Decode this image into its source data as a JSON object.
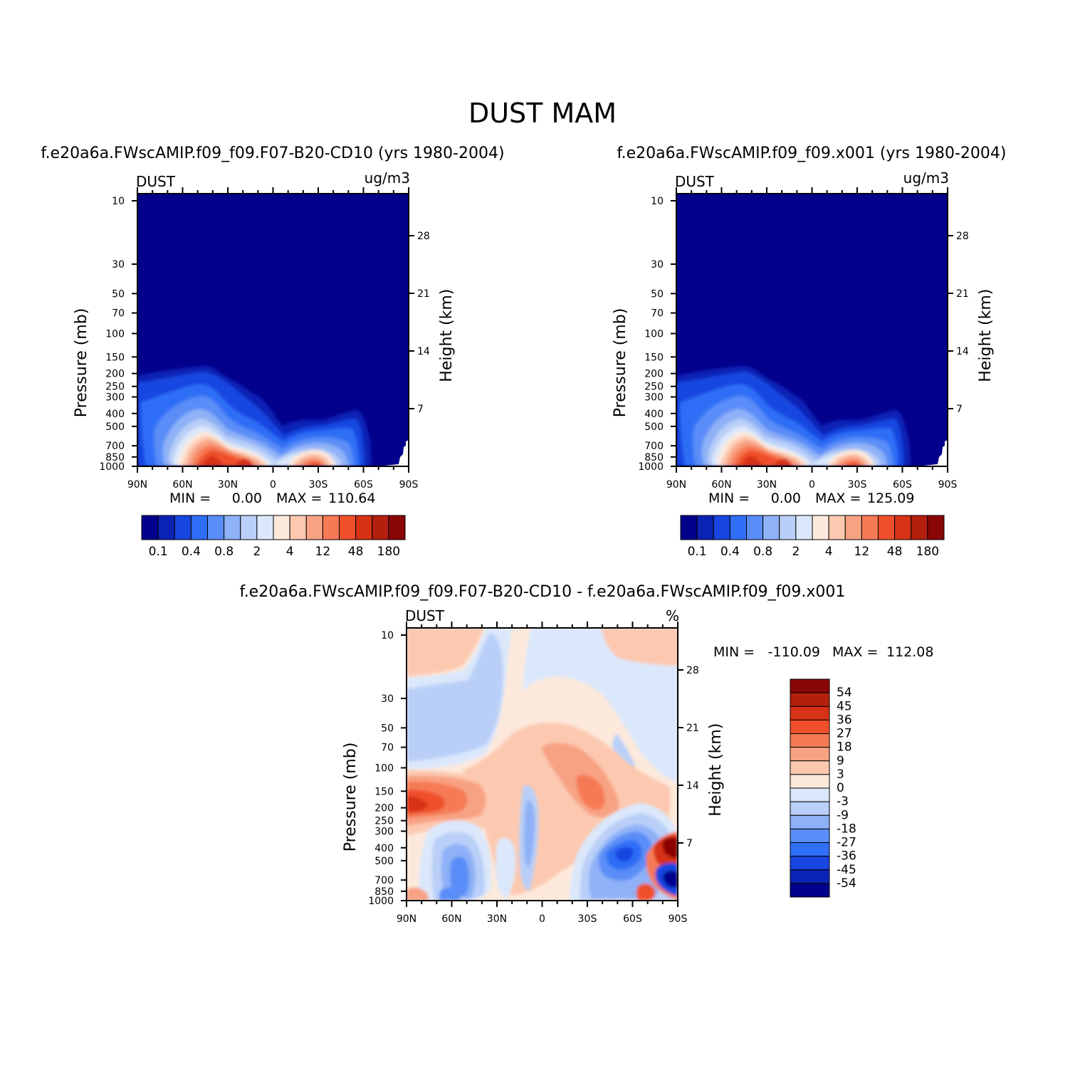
{
  "title": "DUST MAM",
  "chart_data": [
    {
      "type": "heatmap",
      "subtitle": "f.e20a6a.FWscAMIP.f09_f09.F07-B20-CD10 (yrs 1980-2004)",
      "variable": "DUST",
      "units": "ug/m3",
      "ylabel": "Pressure (mb)",
      "ylabel_right": "Height (km)",
      "x_ticks": [
        "90N",
        "60N",
        "30N",
        "0",
        "30S",
        "60S",
        "90S"
      ],
      "x_range": [
        "90N",
        "90S"
      ],
      "y_ticks": [
        10,
        30,
        50,
        70,
        100,
        150,
        200,
        250,
        300,
        400,
        500,
        700,
        850,
        1000
      ],
      "y_range": [
        1000,
        10
      ],
      "y_scale": "log",
      "height_ticks": [
        7,
        14,
        21,
        28
      ],
      "min": "0.00",
      "max": "110.64",
      "colorbar_labels": [
        "0.1",
        "0.4",
        "0.8",
        "2",
        "4",
        "12",
        "48",
        "180"
      ],
      "colorbar_colors": [
        "#03008c",
        "#0a23b5",
        "#1746e0",
        "#2f6ef6",
        "#5a8df7",
        "#8eb1f7",
        "#b9cff8",
        "#dbe8fb",
        "#fde9dc",
        "#fcc9b0",
        "#f8a284",
        "#f57a55",
        "#ef4f2b",
        "#d73216",
        "#b51f0e",
        "#8a0606"
      ],
      "min_label": "MIN  =",
      "max_label": "MAX  ="
    },
    {
      "type": "heatmap",
      "subtitle": "f.e20a6a.FWscAMIP.f09_f09.x001 (yrs 1980-2004)",
      "variable": "DUST",
      "units": "ug/m3",
      "ylabel": "Pressure (mb)",
      "ylabel_right": "Height (km)",
      "x_ticks": [
        "90N",
        "60N",
        "30N",
        "0",
        "30S",
        "60S",
        "90S"
      ],
      "x_range": [
        "90N",
        "90S"
      ],
      "y_ticks": [
        10,
        30,
        50,
        70,
        100,
        150,
        200,
        250,
        300,
        400,
        500,
        700,
        850,
        1000
      ],
      "y_range": [
        1000,
        10
      ],
      "y_scale": "log",
      "height_ticks": [
        7,
        14,
        21,
        28
      ],
      "min": "0.00",
      "max": "125.09",
      "colorbar_labels": [
        "0.1",
        "0.4",
        "0.8",
        "2",
        "4",
        "12",
        "48",
        "180"
      ],
      "colorbar_colors": [
        "#03008c",
        "#0a23b5",
        "#1746e0",
        "#2f6ef6",
        "#5a8df7",
        "#8eb1f7",
        "#b9cff8",
        "#dbe8fb",
        "#fde9dc",
        "#fcc9b0",
        "#f8a284",
        "#f57a55",
        "#ef4f2b",
        "#d73216",
        "#b51f0e",
        "#8a0606"
      ],
      "min_label": "MIN  =",
      "max_label": "MAX  ="
    },
    {
      "type": "heatmap",
      "subtitle": "f.e20a6a.FWscAMIP.f09_f09.F07-B20-CD10 - f.e20a6a.FWscAMIP.f09_f09.x001",
      "variable": "DUST",
      "units": "%",
      "ylabel": "Pressure (mb)",
      "ylabel_right": "Height (km)",
      "x_ticks": [
        "90N",
        "60N",
        "30N",
        "0",
        "30S",
        "60S",
        "90S"
      ],
      "x_range": [
        "90N",
        "90S"
      ],
      "y_ticks": [
        10,
        30,
        50,
        70,
        100,
        150,
        200,
        250,
        300,
        400,
        500,
        700,
        850,
        1000
      ],
      "y_range": [
        1000,
        10
      ],
      "y_scale": "log",
      "height_ticks": [
        7,
        14,
        21,
        28
      ],
      "min": "-110.09",
      "max": "112.08",
      "colorbar_labels": [
        "54",
        "45",
        "36",
        "27",
        "18",
        "9",
        "3",
        "0",
        "-3",
        "-9",
        "-18",
        "-27",
        "-36",
        "-45",
        "-54"
      ],
      "colorbar_colors": [
        "#8a0606",
        "#b51f0e",
        "#d73216",
        "#ef4f2b",
        "#f57a55",
        "#f8a284",
        "#fcc9b0",
        "#fde9dc",
        "#dbe8fb",
        "#b9cff8",
        "#8eb1f7",
        "#5a8df7",
        "#2f6ef6",
        "#1746e0",
        "#0a23b5",
        "#03008c"
      ],
      "min_label": "MIN  =",
      "max_label": "MAX  ="
    }
  ]
}
